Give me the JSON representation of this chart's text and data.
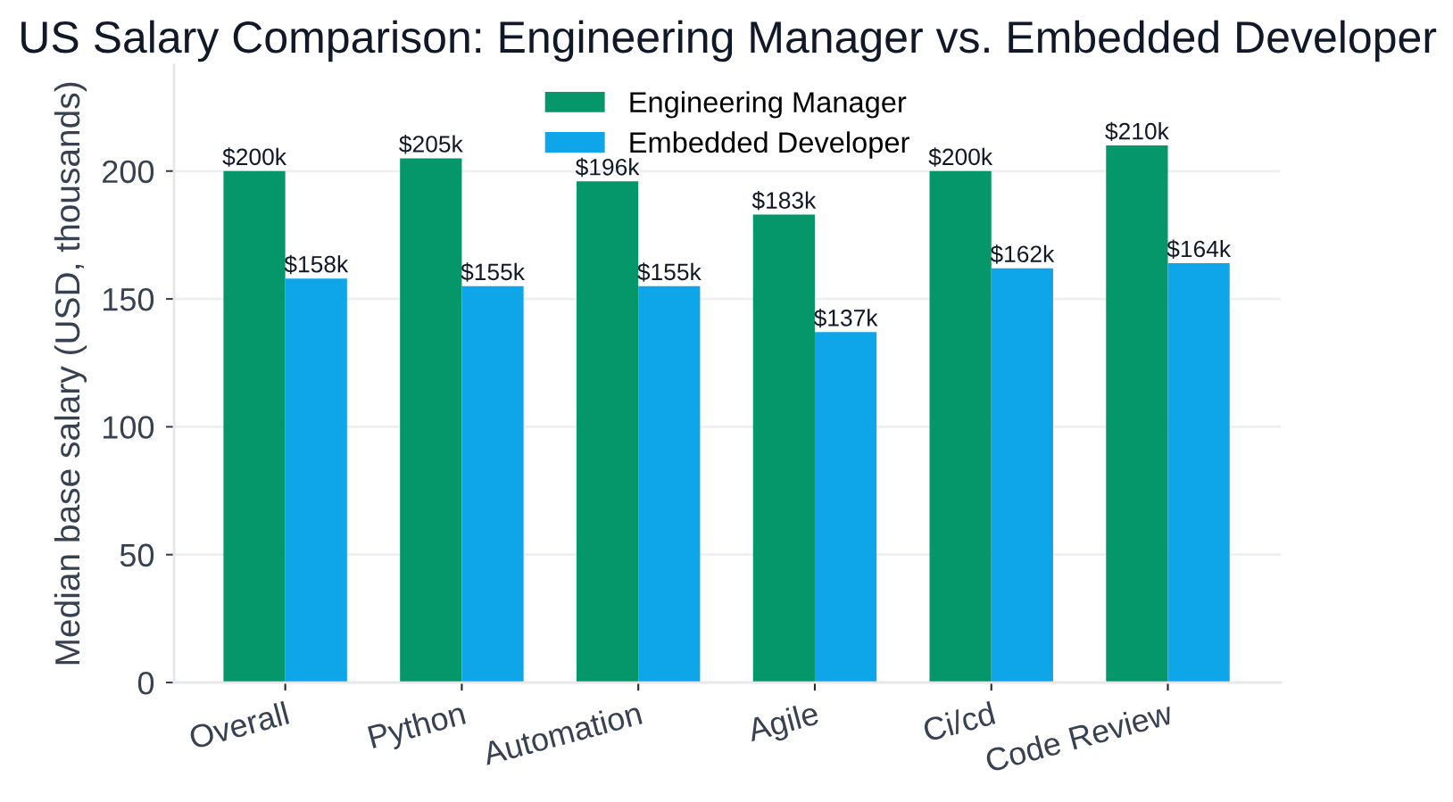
{
  "chart_data": {
    "type": "bar",
    "title": "US Salary Comparison: Engineering Manager vs. Embedded Developer",
    "ylabel": "Median base salary (USD, thousands)",
    "categories": [
      "Overall",
      "Python",
      "Automation",
      "Agile",
      "Ci/cd",
      "Code Review"
    ],
    "series": [
      {
        "name": "Engineering Manager",
        "color": "#059669",
        "values": [
          200,
          205,
          196,
          183,
          200,
          210
        ],
        "value_labels": [
          "$200k",
          "$205k",
          "$196k",
          "$183k",
          "$200k",
          "$210k"
        ]
      },
      {
        "name": "Embedded Developer",
        "color": "#0ea5e9",
        "values": [
          158,
          155,
          155,
          137,
          162,
          164
        ],
        "value_labels": [
          "$158k",
          "$155k",
          "$155k",
          "$137k",
          "$162k",
          "$164k"
        ]
      }
    ],
    "ylim": [
      0,
      241.5
    ],
    "yticks": [
      0,
      50,
      100,
      150,
      200
    ],
    "grid": "y",
    "legend": "top"
  }
}
